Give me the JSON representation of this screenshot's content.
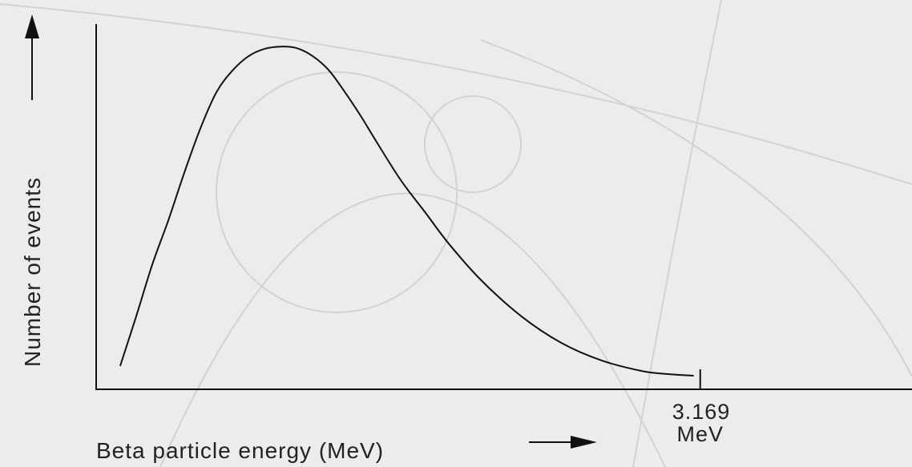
{
  "chart_data": {
    "type": "line",
    "y_label": "Number of events",
    "x_label": "Beta particle energy (MeV)",
    "xlim": [
      0,
      4.28
    ],
    "ylim": [
      0,
      1
    ],
    "xticks": [
      {
        "value": 3.169,
        "label": "3.169 MeV"
      }
    ],
    "grid": false,
    "series": [
      {
        "color": "#111111",
        "x": [
          0.126,
          0.21,
          0.295,
          0.379,
          0.463,
          0.547,
          0.631,
          0.716,
          0.8,
          0.884,
          0.968,
          1.052,
          1.136,
          1.221,
          1.305,
          1.389,
          1.473,
          1.599,
          1.725,
          1.852,
          2.02,
          2.231,
          2.441,
          2.651,
          2.862,
          2.988,
          3.135
        ],
        "values": [
          0.062,
          0.198,
          0.341,
          0.462,
          0.593,
          0.714,
          0.813,
          0.873,
          0.912,
          0.932,
          0.938,
          0.934,
          0.912,
          0.873,
          0.813,
          0.747,
          0.675,
          0.571,
          0.484,
          0.396,
          0.297,
          0.198,
          0.125,
          0.077,
          0.048,
          0.04,
          0.035
        ]
      }
    ]
  }
}
